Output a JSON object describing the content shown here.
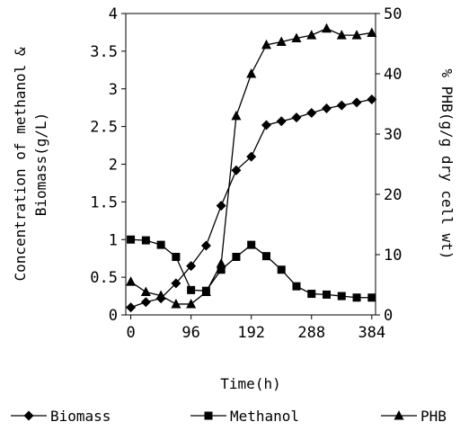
{
  "chart_data": {
    "type": "line",
    "title": "",
    "xlabel": "Time(h)",
    "ylabel_left": "Concentration of methanol & Biomass(g/L)",
    "ylabel_right": "% PHB(g/g dry cell wt)",
    "xlim": [
      -8,
      390
    ],
    "ylim_left": [
      0,
      4
    ],
    "ylim_right": [
      0,
      50
    ],
    "xticks": [
      0,
      96,
      192,
      288,
      384
    ],
    "yticks_left": [
      0,
      0.5,
      1,
      1.5,
      2,
      2.5,
      3,
      3.5,
      4
    ],
    "yticks_right": [
      0,
      10,
      20,
      30,
      40,
      50
    ],
    "xtick_labels": [
      "0",
      "96",
      "192",
      "288",
      "384"
    ],
    "ytick_labels_left": [
      "0",
      "0.5",
      "1",
      "1.5",
      "2",
      "2.5",
      "3",
      "3.5",
      "4"
    ],
    "ytick_labels_right": [
      "0",
      "10",
      "20",
      "30",
      "40",
      "50"
    ],
    "grid": false,
    "legend_position": "bottom",
    "series": [
      {
        "name": "Biomass",
        "axis": "left",
        "marker": "diamond",
        "x": [
          0,
          24,
          48,
          72,
          96,
          120,
          144,
          168,
          192,
          216,
          240,
          264,
          288,
          312,
          336,
          360,
          384
        ],
        "y": [
          0.1,
          0.17,
          0.22,
          0.42,
          0.65,
          0.92,
          1.45,
          1.92,
          2.1,
          2.52,
          2.57,
          2.62,
          2.68,
          2.74,
          2.78,
          2.82,
          2.86
        ]
      },
      {
        "name": "Methanol",
        "axis": "left",
        "marker": "square",
        "x": [
          0,
          24,
          48,
          72,
          96,
          120,
          144,
          168,
          192,
          216,
          240,
          264,
          288,
          312,
          336,
          360,
          384
        ],
        "y": [
          1.0,
          0.99,
          0.93,
          0.77,
          0.33,
          0.32,
          0.6,
          0.77,
          0.93,
          0.78,
          0.6,
          0.38,
          0.28,
          0.27,
          0.25,
          0.23,
          0.23
        ]
      },
      {
        "name": "PHB",
        "axis": "right",
        "marker": "triangle",
        "x": [
          0,
          24,
          48,
          72,
          96,
          120,
          144,
          168,
          192,
          216,
          240,
          264,
          288,
          312,
          336,
          360,
          384
        ],
        "y": [
          5.5,
          3.8,
          3.2,
          1.8,
          1.8,
          3.8,
          8.5,
          33.0,
          40.0,
          44.8,
          45.3,
          45.9,
          46.4,
          47.5,
          46.4,
          46.4,
          46.8
        ]
      }
    ]
  }
}
